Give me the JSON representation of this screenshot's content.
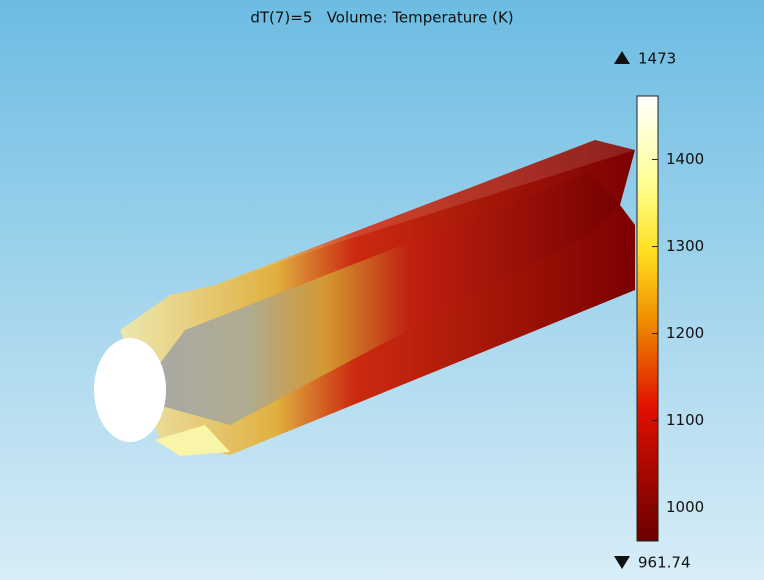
{
  "plot": {
    "title": "dT(7)=5   Volume: Temperature (K)",
    "colorbar": {
      "max": 1473,
      "min": 961.74,
      "ticks": [
        1000,
        1100,
        1200,
        1300,
        1400
      ]
    }
  }
}
